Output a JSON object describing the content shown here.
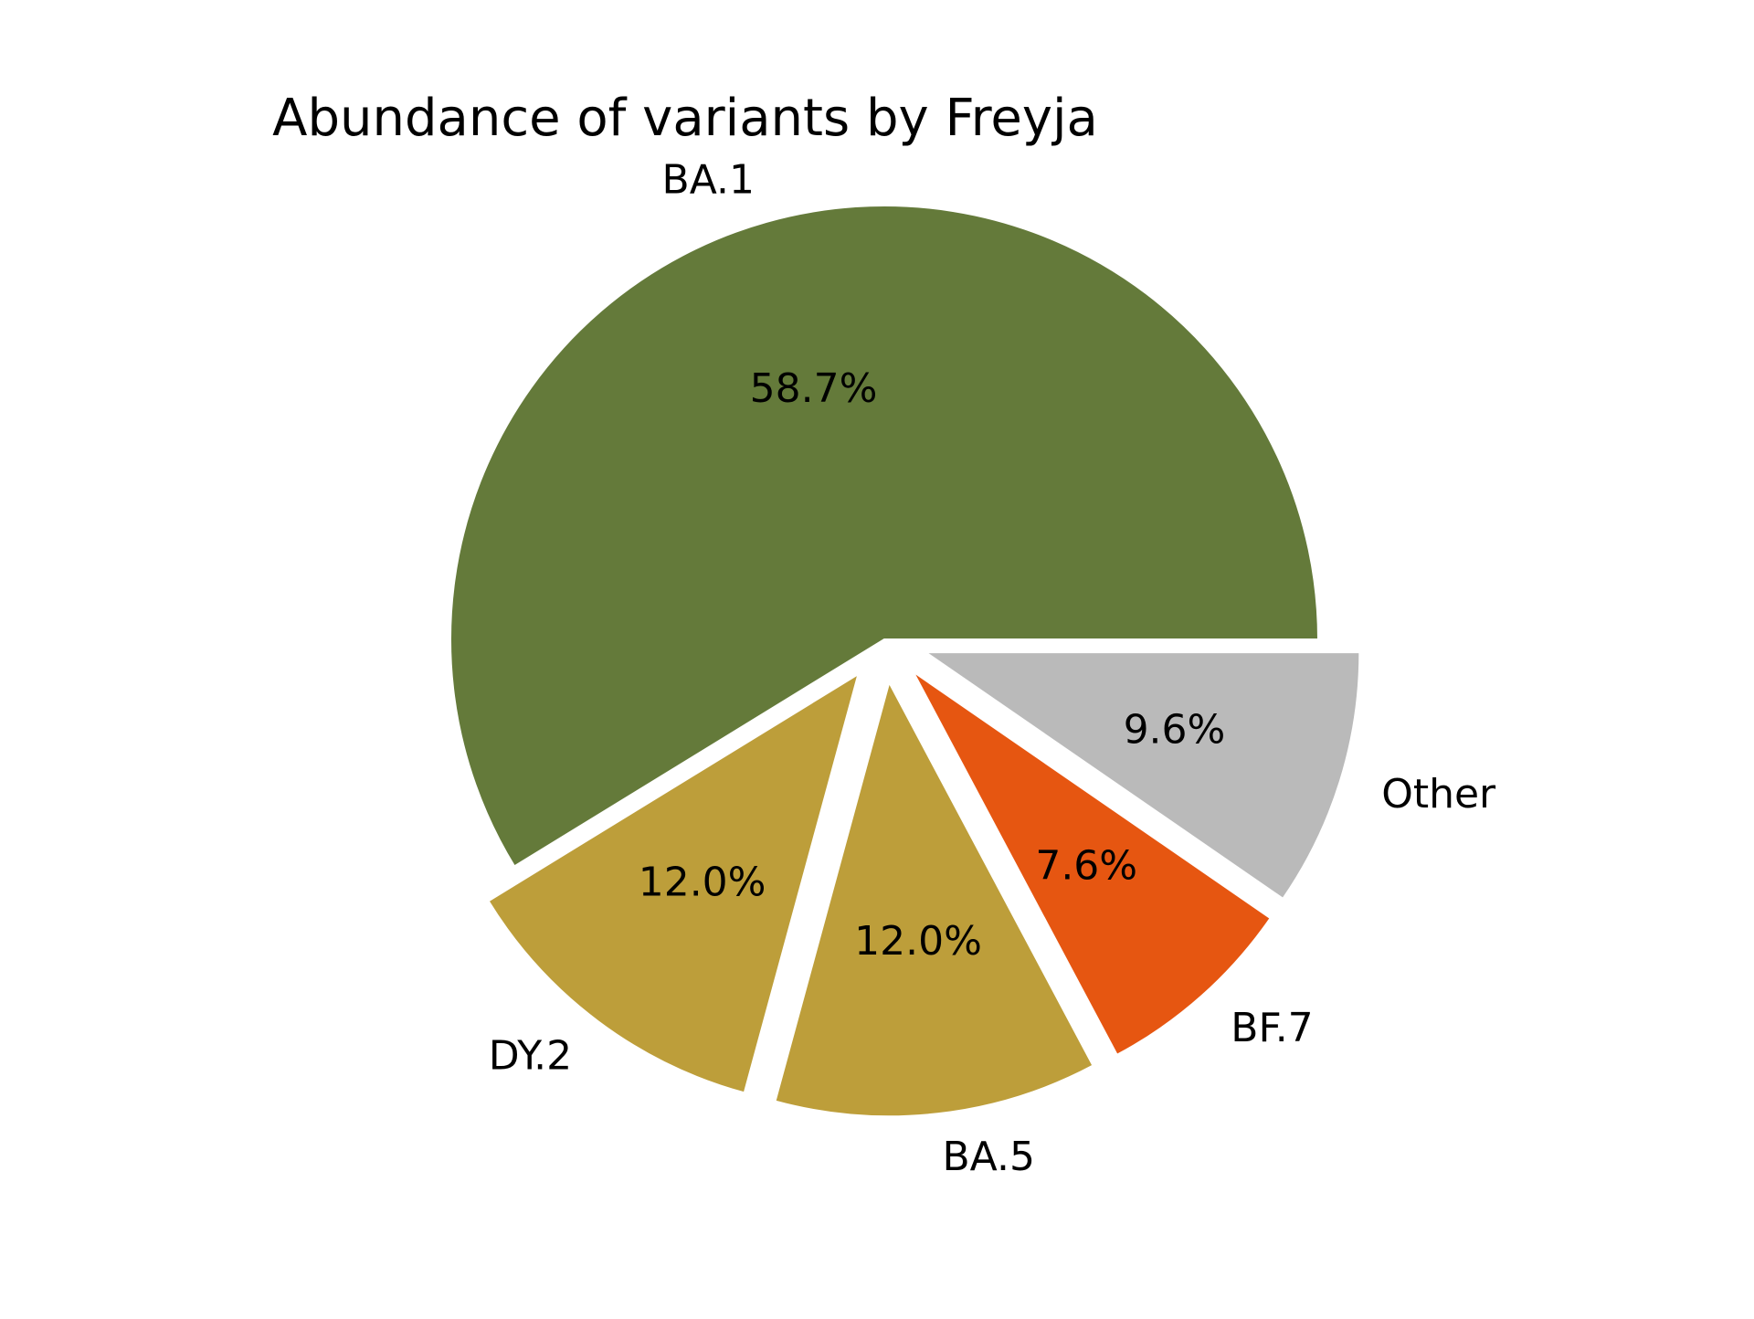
{
  "chart_data": {
    "type": "pie",
    "title": "Abundance of variants by Freyja",
    "slices": [
      {
        "label": "BA.1",
        "value": 58.7,
        "pct_label": "58.7%",
        "color": "#647a3a",
        "exploded": false
      },
      {
        "label": "DY.2",
        "value": 12.0,
        "pct_label": "12.0%",
        "color": "#bd9e3a",
        "exploded": true
      },
      {
        "label": "BA.5",
        "value": 12.0,
        "pct_label": "12.0%",
        "color": "#bd9e3a",
        "exploded": true
      },
      {
        "label": "BF.7",
        "value": 7.6,
        "pct_label": "7.6%",
        "color": "#e65611",
        "exploded": true
      },
      {
        "label": "Other",
        "value": 9.6,
        "pct_label": "9.6%",
        "color": "#bababa",
        "exploded": true
      }
    ],
    "start_angle_deg": 0,
    "direction": "counterclockwise",
    "legend": "none"
  }
}
